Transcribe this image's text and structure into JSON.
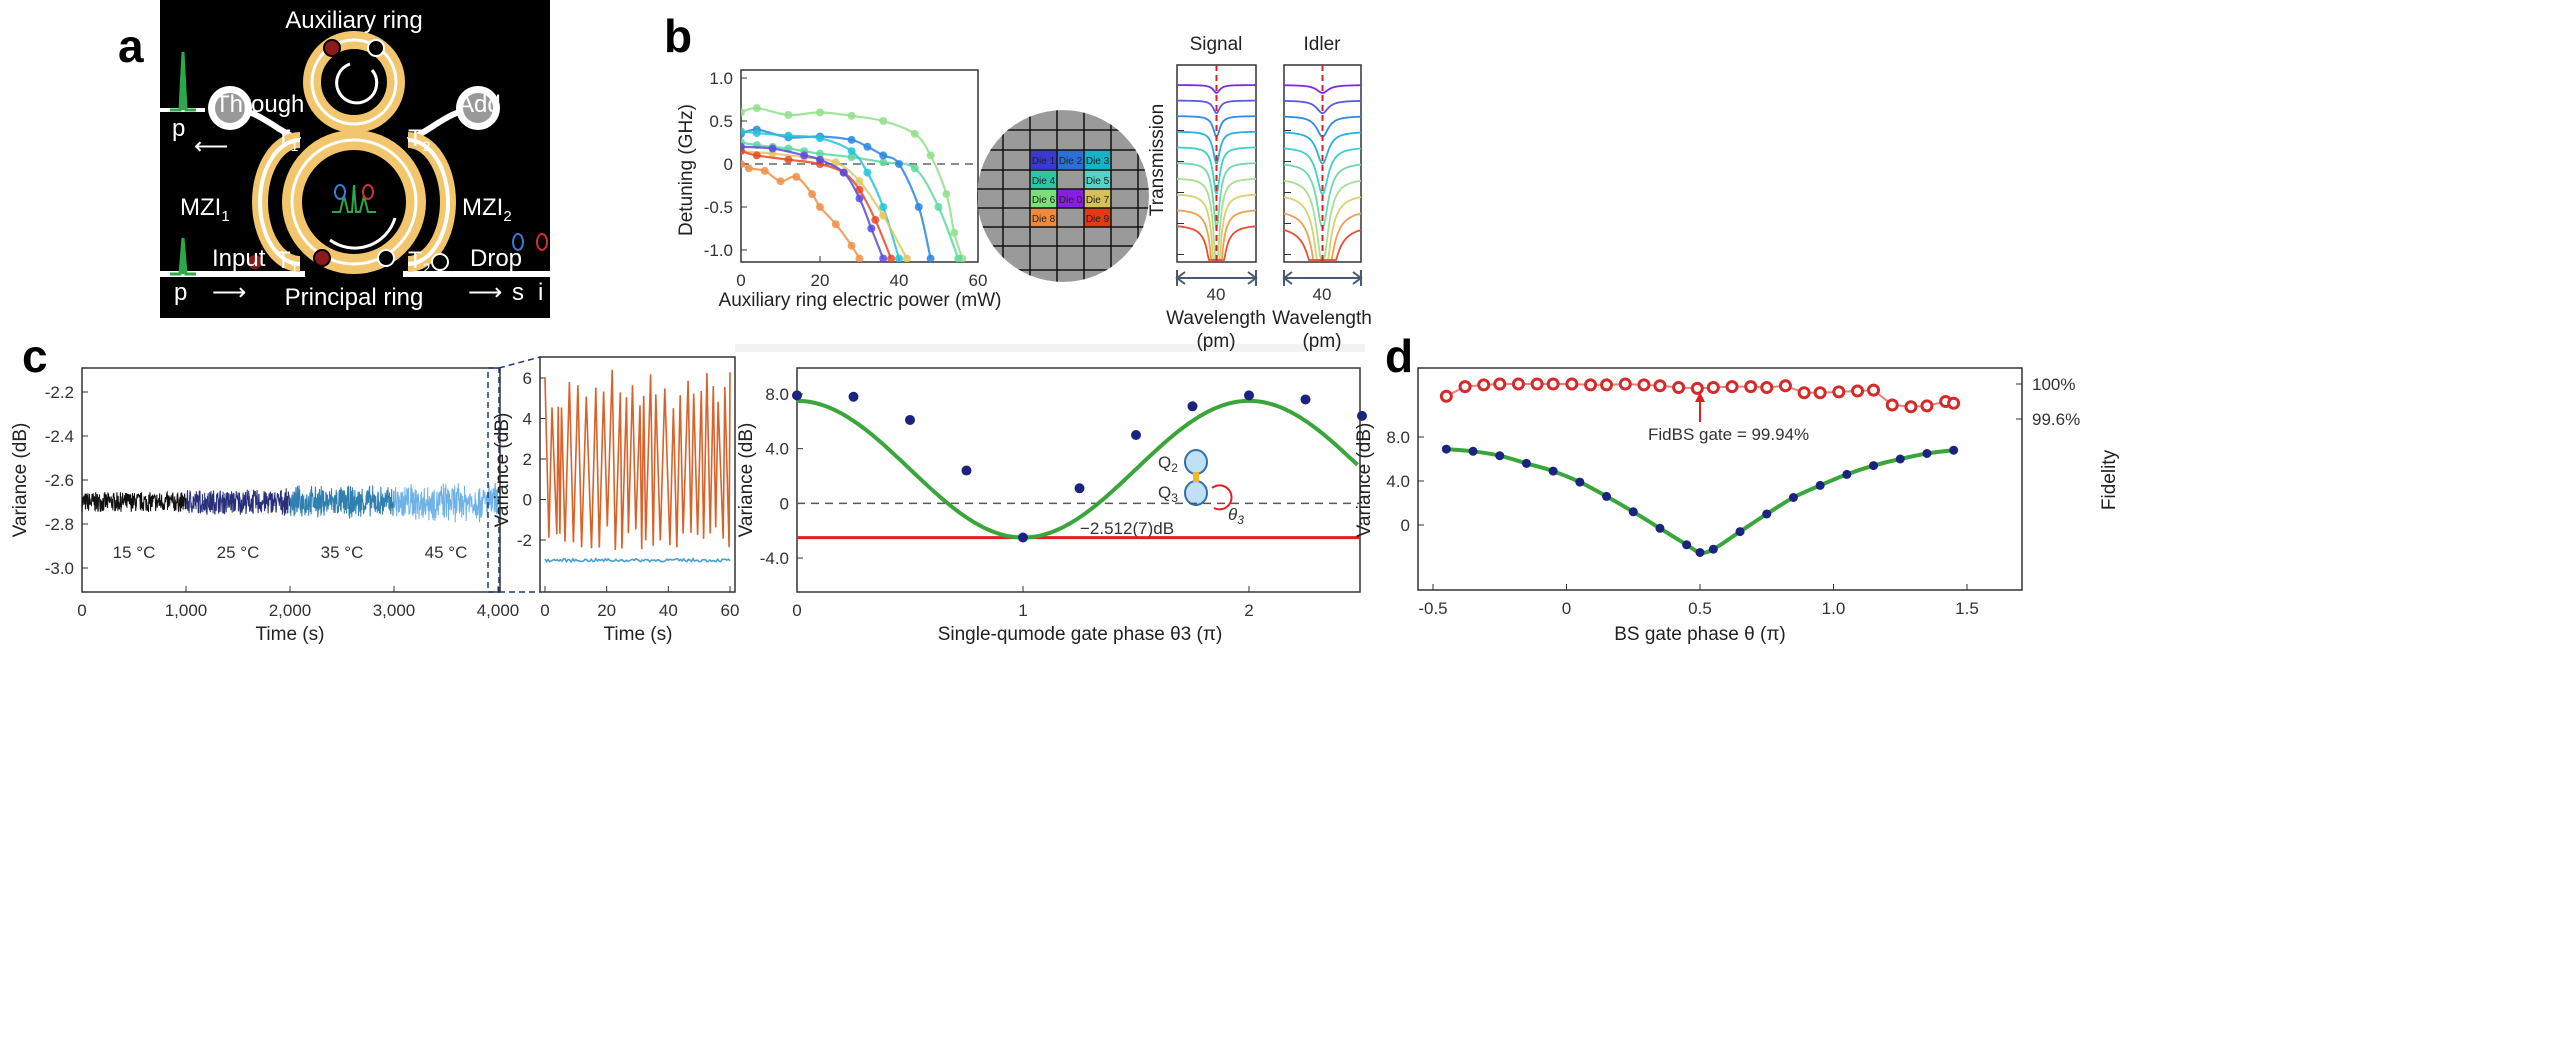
{
  "panel_labels": {
    "a": "a",
    "b": "b",
    "c": "c",
    "d": "d"
  },
  "diagram_a": {
    "auxiliary_ring": "Auxiliary ring",
    "principal_ring": "Principal ring",
    "through": "Through",
    "add": "Add",
    "mzi1": "MZI",
    "mzi1_sub": "1",
    "mzi2": "MZI",
    "mzi2_sub": "2",
    "t1": "T",
    "t1_sub": "1",
    "t2": "T",
    "t2_sub": "2",
    "input": "Input",
    "drop": "Drop",
    "pump_through": "p",
    "pump_input": "p",
    "signal": "s",
    "idler": "i",
    "colors": {
      "background": "#000000",
      "ring": "#f2c66d",
      "heater": "#8b1a1a",
      "pulse": "#2aa84a"
    }
  },
  "wafer": {
    "dies": [
      {
        "label": "Die 1",
        "color": "#3a3ad0"
      },
      {
        "label": "Die 2",
        "color": "#2d6fd8"
      },
      {
        "label": "Die 3",
        "color": "#18b2c8"
      },
      {
        "label": "Die 4",
        "color": "#2ec4a6"
      },
      {
        "label": "Die 5",
        "color": "#55d3c6"
      },
      {
        "label": "Die 6",
        "color": "#7ddf7a"
      },
      {
        "label": "Die 0",
        "color": "#8a1ee0"
      },
      {
        "label": "Die 7",
        "color": "#d6c05a"
      },
      {
        "label": "Die 8",
        "color": "#ef8a3c"
      },
      {
        "label": "Die 9",
        "color": "#e43a14"
      }
    ]
  },
  "chart_data": [
    {
      "id": "b-detuning",
      "type": "line",
      "xlabel": "Auxiliary ring electric power (mW)",
      "ylabel": "Detuning (GHz)",
      "xlim": [
        0,
        60
      ],
      "ylim": [
        -1.1,
        1.0
      ],
      "xticks": [
        "0",
        "20",
        "40",
        "60"
      ],
      "yticks": [
        "1.0",
        "0.5",
        "0",
        "-0.5",
        "-1.0"
      ],
      "reference_line": 0,
      "series": [
        {
          "color": "#8fe08a",
          "x": [
            0,
            4,
            12,
            20,
            28,
            36,
            44,
            48,
            52,
            54,
            56
          ],
          "y": [
            0.6,
            0.65,
            0.57,
            0.6,
            0.56,
            0.5,
            0.35,
            0.1,
            -0.35,
            -0.8,
            -1.1
          ]
        },
        {
          "color": "#5fd8a0",
          "x": [
            0,
            4,
            8,
            12,
            16,
            20,
            28,
            36,
            44,
            50,
            55
          ],
          "y": [
            0.25,
            0.22,
            0.2,
            0.18,
            0.15,
            0.12,
            0.08,
            0.02,
            -0.05,
            -0.5,
            -1.1
          ]
        },
        {
          "color": "#2a86e0",
          "x": [
            0,
            4,
            12,
            20,
            28,
            32,
            36,
            40,
            45,
            48
          ],
          "y": [
            0.35,
            0.4,
            0.31,
            0.32,
            0.28,
            0.2,
            0.1,
            0,
            -0.5,
            -1.1
          ]
        },
        {
          "color": "#22c4d8",
          "x": [
            0,
            4,
            12,
            20,
            28,
            32,
            36,
            40
          ],
          "y": [
            0.38,
            0.36,
            0.33,
            0.3,
            0.15,
            -0.1,
            -0.5,
            -1.1
          ]
        },
        {
          "color": "#e0c860",
          "x": [
            0,
            8,
            16,
            24,
            30,
            36,
            42
          ],
          "y": [
            0.15,
            0.12,
            0.08,
            0.02,
            -0.2,
            -0.6,
            -1.1
          ]
        },
        {
          "color": "#e84a28",
          "x": [
            0,
            4,
            12,
            20,
            26,
            30,
            34,
            38
          ],
          "y": [
            0.15,
            0.1,
            0.05,
            0,
            -0.1,
            -0.3,
            -0.65,
            -1.1
          ]
        },
        {
          "color": "#5a4ae0",
          "x": [
            0,
            8,
            16,
            20,
            26,
            30,
            33,
            36
          ],
          "y": [
            0.2,
            0.18,
            0.1,
            0.05,
            -0.1,
            -0.4,
            -0.75,
            -1.1
          ]
        },
        {
          "color": "#f0904a",
          "x": [
            0,
            2,
            6,
            10,
            14,
            18,
            20,
            24,
            28,
            30
          ],
          "y": [
            0,
            -0.05,
            -0.08,
            -0.2,
            -0.15,
            -0.35,
            -0.5,
            -0.7,
            -0.95,
            -1.1
          ]
        }
      ]
    },
    {
      "id": "b-transmission-signal",
      "type": "line",
      "title": "Signal",
      "ylabel": "Transmission",
      "xlabel": "Wavelength (pm)",
      "span_label": "40",
      "traces": 10
    },
    {
      "id": "b-transmission-idler",
      "type": "line",
      "title": "Idler",
      "xlabel": "Wavelength (pm)",
      "span_label": "40",
      "traces": 10
    },
    {
      "id": "c-variance-long",
      "type": "line",
      "xlabel": "Time (s)",
      "ylabel": "Variance (dB)",
      "xlim": [
        0,
        4000
      ],
      "ylim": [
        -3.1,
        -2.1
      ],
      "xticks": [
        "0",
        "1,000",
        "2,000",
        "3,000",
        "4,000"
      ],
      "yticks": [
        "-2.2",
        "-2.4",
        "-2.6",
        "-2.8",
        "-3.0"
      ],
      "mean": -2.7,
      "segments": [
        {
          "label": "15 °C",
          "t": [
            0,
            1000
          ],
          "color": "#111111"
        },
        {
          "label": "25 °C",
          "t": [
            1000,
            2000
          ],
          "color": "#2a2f7a"
        },
        {
          "label": "35 °C",
          "t": [
            2000,
            3000
          ],
          "color": "#2f7fb0"
        },
        {
          "label": "45 °C",
          "t": [
            3000,
            4000
          ],
          "color": "#6fb2e8"
        }
      ]
    },
    {
      "id": "c-variance-zoom",
      "type": "line",
      "xlabel": "Time (s)",
      "ylabel": "Variance (dB)",
      "xlim": [
        0,
        60
      ],
      "ylim": [
        -3.5,
        7
      ],
      "xticks": [
        "0",
        "20",
        "40",
        "60"
      ],
      "yticks": [
        "6",
        "4",
        "2",
        "0",
        "-2"
      ],
      "series": [
        {
          "color": "#d9622a",
          "range": [
            -2.5,
            6.5
          ]
        },
        {
          "color": "#4a9fd0",
          "level": -3
        }
      ]
    },
    {
      "id": "c-gate-phase",
      "type": "scatter",
      "xlabel": "Single-qumode gate phase θ3 (π)",
      "ylabel": "Variance (dB)",
      "xlim": [
        0,
        2.5
      ],
      "ylim": [
        -5,
        10
      ],
      "xticks": [
        "0",
        "1",
        "2"
      ],
      "yticks": [
        "8.0",
        "4.0",
        "0",
        "-4.0"
      ],
      "points": {
        "x": [
          0,
          0.25,
          0.5,
          0.75,
          1,
          1.25,
          1.5,
          1.75,
          2,
          2.25,
          2.5
        ],
        "y": [
          7.9,
          7.8,
          6.1,
          2.4,
          -2.5,
          1.1,
          5.0,
          7.1,
          7.9,
          7.6,
          6.4
        ],
        "color": "#1a237e"
      },
      "fit": {
        "color": "#3aa53a",
        "offset": 2.5,
        "amplitude": 5.0
      },
      "floor": {
        "value": -2.512,
        "label": "−2.512(7)dB",
        "color": "#e02020"
      },
      "reference_line": 0,
      "inset": {
        "q2": "Q",
        "q2_sub": "2",
        "q3": "Q",
        "q3_sub": "3",
        "theta": "θ",
        "theta_sub": "3"
      }
    },
    {
      "id": "d-bs-gate",
      "type": "scatter",
      "xlabel": "BS gate phase θ (π)",
      "ylabel": "Variance (dB)",
      "y2label": "Fidelity",
      "xlim": [
        -0.55,
        1.55
      ],
      "ylim": [
        -4,
        15
      ],
      "xticks": [
        "-0.5",
        "0",
        "0.5",
        "1.0",
        "1.5"
      ],
      "yticks": [
        "8.0",
        "4.0",
        "0"
      ],
      "y2ticks": [
        "100%",
        "99.6%"
      ],
      "y2lim": [
        99.4,
        100.06
      ],
      "variance": {
        "color": "#1a237e",
        "x": [
          -0.45,
          -0.35,
          -0.25,
          -0.15,
          -0.05,
          0.05,
          0.15,
          0.25,
          0.35,
          0.45,
          0.5,
          0.55,
          0.65,
          0.75,
          0.85,
          0.95,
          1.05,
          1.15,
          1.25,
          1.35,
          1.45
        ],
        "y": [
          6.9,
          6.7,
          6.3,
          5.6,
          4.9,
          3.9,
          2.6,
          1.2,
          -0.3,
          -1.8,
          -2.5,
          -2.2,
          -0.6,
          1.0,
          2.5,
          3.6,
          4.6,
          5.4,
          6.0,
          6.5,
          6.8
        ]
      },
      "fit_color": "#3aa53a",
      "fidelity": {
        "color": "#d42a2a",
        "x": [
          -0.45,
          -0.38,
          -0.31,
          -0.25,
          -0.18,
          -0.11,
          -0.05,
          0.02,
          0.09,
          0.15,
          0.22,
          0.29,
          0.35,
          0.42,
          0.49,
          0.55,
          0.62,
          0.69,
          0.75,
          0.82,
          0.89,
          0.95,
          1.02,
          1.09,
          1.15,
          1.22,
          1.29,
          1.35,
          1.42,
          1.45
        ],
        "y": [
          99.86,
          99.97,
          99.99,
          100,
          100,
          100,
          100,
          100,
          99.99,
          99.99,
          100,
          99.99,
          99.98,
          99.96,
          99.95,
          99.96,
          99.97,
          99.97,
          99.96,
          99.98,
          99.9,
          99.9,
          99.91,
          99.92,
          99.93,
          99.76,
          99.74,
          99.75,
          99.8,
          99.78
        ]
      },
      "annotation": {
        "label": "FidBS gate = 99.94%",
        "x": 0.5
      }
    }
  ]
}
